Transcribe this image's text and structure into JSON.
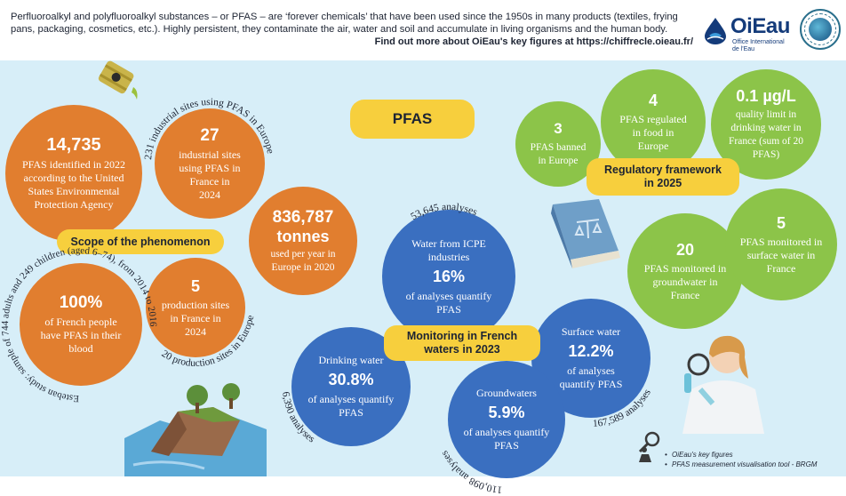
{
  "intro": {
    "text": "Perfluoroalkyl and polyfluoroalkyl substances – or PFAS – are ‘forever chemicals’ that have been used since the 1950s in many products (textiles, frying pans, packaging, cosmetics, etc.). Highly persistent, they contaminate the air, water and soil and accumulate in living organisms and the human body.",
    "link": "Find out more about OiEau's key figures at https://chiffrecle.oieau.fr/"
  },
  "logo": {
    "name": "OiEau",
    "sub": "Office International de l'Eau"
  },
  "title": "PFAS",
  "scope": {
    "tag": "Scope of the phenomenon",
    "c1": {
      "value": "14,735",
      "label": "PFAS identified in 2022 according to the United States Environmental Protection Agency"
    },
    "c2": {
      "value": "27",
      "label": "industrial sites using PFAS in France in 2024",
      "arc": "231 industrial sites using PFAS in Europe"
    },
    "c3": {
      "value": "836,787",
      "unit": "tonnes",
      "label": "used per year in Europe in 2020"
    },
    "c4": {
      "value": "5",
      "label": "production sites in France in 2024",
      "arc": "20 production sites in Europe"
    },
    "c5": {
      "value": "100%",
      "label": "of French people have PFAS in their blood",
      "arc": "Esteban study: sample of 744 adults and 249 children (aged 6–74), from 2014 to 2016"
    }
  },
  "regulatory": {
    "tag": "Regulatory framework in 2025",
    "c1": {
      "value": "3",
      "label": "PFAS banned in Europe"
    },
    "c2": {
      "value": "4",
      "label": "PFAS regulated in food in Europe"
    },
    "c3": {
      "value": "0.1 µg/L",
      "label": "quality limit in drinking water in France (sum of 20 PFAS)"
    },
    "c4": {
      "value": "20",
      "label": "PFAS monitored in groundwater in France"
    },
    "c5": {
      "value": "5",
      "label": "PFAS monitored in surface water in France"
    }
  },
  "monitoring": {
    "tag": "Monitoring in French waters in 2023",
    "icpe": {
      "title": "Water from ICPE industries",
      "value": "16%",
      "label": "of analyses quantify PFAS",
      "arc": "53,645 analyses"
    },
    "drinking": {
      "title": "Drinking water",
      "value": "30.8%",
      "label": "of analyses quantify PFAS",
      "arc": "6,390 analyses"
    },
    "ground": {
      "title": "Groundwaters",
      "value": "5.9%",
      "label": "of analyses quantify PFAS",
      "arc": "110,098 analyses"
    },
    "surface": {
      "title": "Surface water",
      "value": "12.2%",
      "label": "of analyses quantify PFAS",
      "arc": "167,589 analyses"
    }
  },
  "sources": [
    "OiEau's key figures",
    "PFAS measurement visualisation tool - BRGM"
  ]
}
